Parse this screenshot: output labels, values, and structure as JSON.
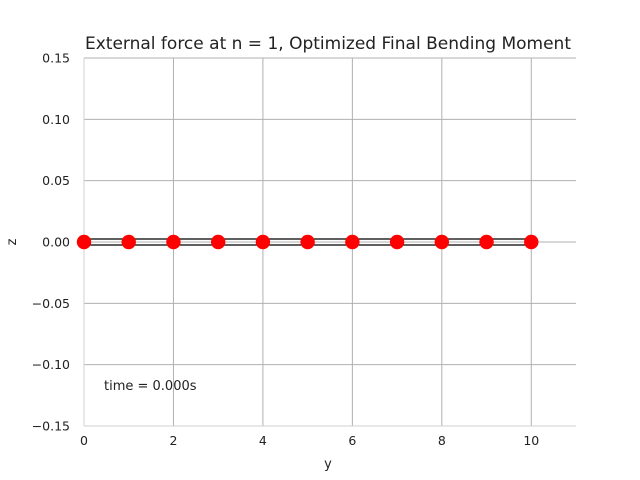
{
  "chart_data": {
    "type": "line",
    "title": "External force at n = 1, Optimized Final Bending Moment",
    "xlabel": "y",
    "ylabel": "z",
    "xlim": [
      0,
      11
    ],
    "ylim": [
      -0.15,
      0.15
    ],
    "xticks": [
      0,
      2,
      4,
      6,
      8,
      10
    ],
    "xtick_labels": [
      "0",
      "2",
      "4",
      "6",
      "8",
      "10"
    ],
    "yticks": [
      -0.15,
      -0.1,
      -0.05,
      0.0,
      0.05,
      0.1,
      0.15
    ],
    "ytick_labels": [
      "−0.15",
      "−0.10",
      "−0.05",
      "0.00",
      "0.05",
      "0.10",
      "0.15"
    ],
    "grid": true,
    "annotation": "time = 0.000s",
    "series": [
      {
        "x": [
          0,
          1,
          2,
          3,
          4,
          5,
          6,
          7,
          8,
          9,
          10
        ],
        "y": [
          0,
          0,
          0,
          0,
          0,
          0,
          0,
          0,
          0,
          0,
          0
        ],
        "line_color": "#000000",
        "marker_color": "#ff0000"
      }
    ]
  }
}
